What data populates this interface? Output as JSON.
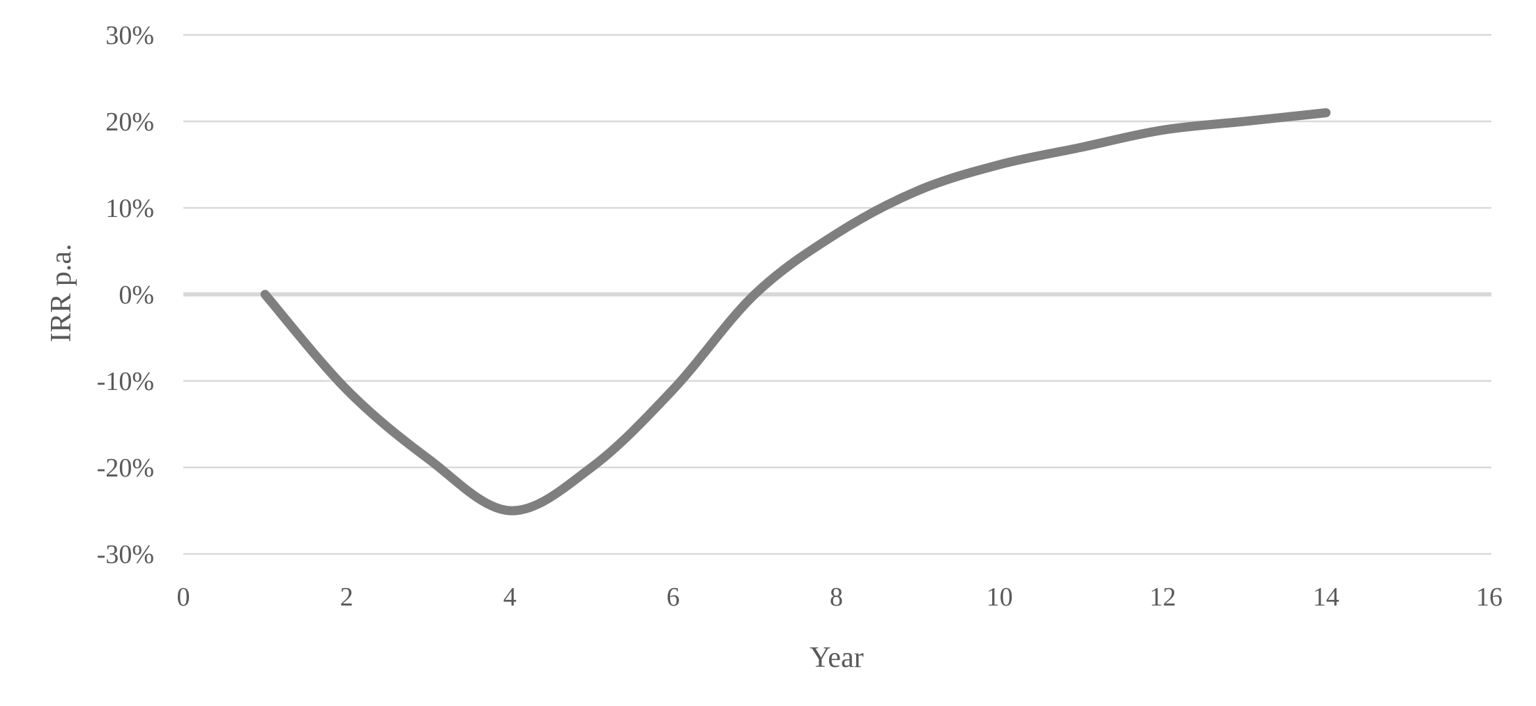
{
  "chart_data": {
    "type": "line",
    "title": "",
    "xlabel": "Year",
    "ylabel": "IRR p.a.",
    "x": [
      1,
      2,
      3,
      4,
      5,
      6,
      7,
      8,
      9,
      10,
      11,
      12,
      13,
      14
    ],
    "series": [
      {
        "name": "IRR p.a.",
        "values": [
          0.0,
          -0.11,
          -0.19,
          -0.25,
          -0.2,
          -0.11,
          0.0,
          0.07,
          0.12,
          0.15,
          0.17,
          0.19,
          0.2,
          0.21
        ],
        "color": "#7f7f7f",
        "line_width": 13,
        "smooth": true
      }
    ],
    "xlim": [
      0,
      16
    ],
    "ylim": [
      -0.3,
      0.3
    ],
    "x_ticks": [
      0,
      2,
      4,
      6,
      8,
      10,
      12,
      14,
      16
    ],
    "x_tick_labels": [
      "0",
      "2",
      "4",
      "6",
      "8",
      "10",
      "12",
      "14",
      "16"
    ],
    "y_ticks": [
      0.3,
      0.2,
      0.1,
      0.0,
      -0.1,
      -0.2,
      -0.3
    ],
    "y_tick_labels": [
      "30%",
      "20%",
      "10%",
      "0%",
      "-10%",
      "-20%",
      "-30%"
    ],
    "grid": "horizontal-major",
    "legend": "none",
    "gridline_color": "#d9d9d9",
    "zero_line_color": "#d9d9d9",
    "label_color": "#595959",
    "background_color": "#ffffff"
  }
}
